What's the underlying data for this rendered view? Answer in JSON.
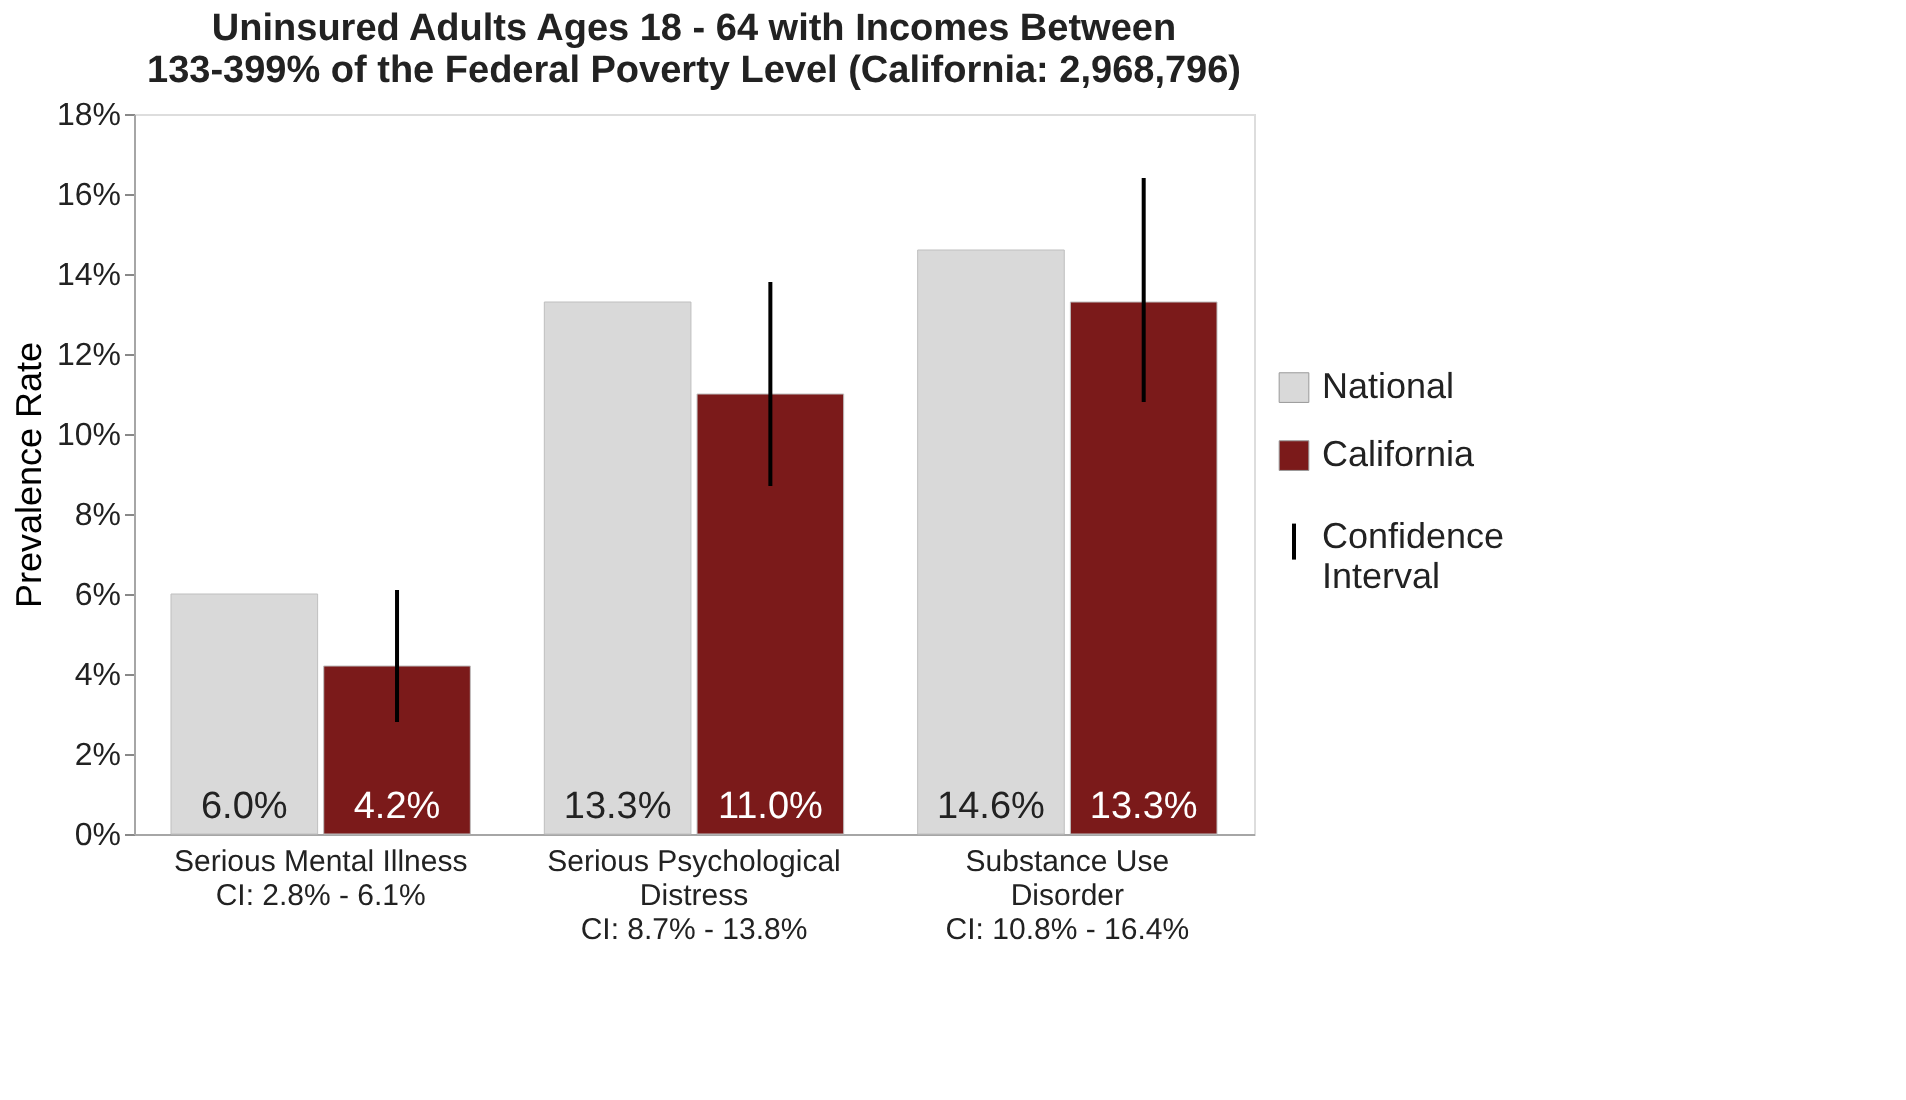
{
  "chart_data": {
    "type": "bar",
    "title": "Uninsured Adults Ages 18 - 64 with Incomes Between\n133-399% of the Federal Poverty Level (California: 2,968,796)",
    "ylabel": "Prevalence Rate",
    "categories": [
      "Serious Mental Illness\nCI: 2.8% - 6.1%",
      "Serious Psychological\nDistress\nCI: 8.7% - 13.8%",
      "Substance Use\nDisorder\nCI: 10.8% - 16.4%"
    ],
    "series": [
      {
        "name": "National",
        "color": "#d9d9d9",
        "values": [
          6.0,
          13.3,
          14.6
        ],
        "value_labels": [
          "6.0%",
          "13.3%",
          "14.6%"
        ]
      },
      {
        "name": "California",
        "color": "#7b1a1a",
        "values": [
          4.2,
          11.0,
          13.3
        ],
        "value_labels": [
          "4.2%",
          "11.0%",
          "13.3%"
        ],
        "errors": [
          [
            2.8,
            6.1
          ],
          [
            8.7,
            13.8
          ],
          [
            10.8,
            16.4
          ]
        ]
      }
    ],
    "annotations": [
      "Confidence Interval"
    ],
    "ylim": [
      0,
      18
    ],
    "yticks": [
      {
        "value": 0,
        "label": "0%"
      },
      {
        "value": 2,
        "label": "2%"
      },
      {
        "value": 4,
        "label": "4%"
      },
      {
        "value": 6,
        "label": "6%"
      },
      {
        "value": 8,
        "label": "8%"
      },
      {
        "value": 10,
        "label": "10%"
      },
      {
        "value": 12,
        "label": "12%"
      },
      {
        "value": 14,
        "label": "14%"
      },
      {
        "value": 16,
        "label": "16%"
      },
      {
        "value": 18,
        "label": "18%"
      }
    ],
    "grid": false,
    "legend": "right"
  }
}
